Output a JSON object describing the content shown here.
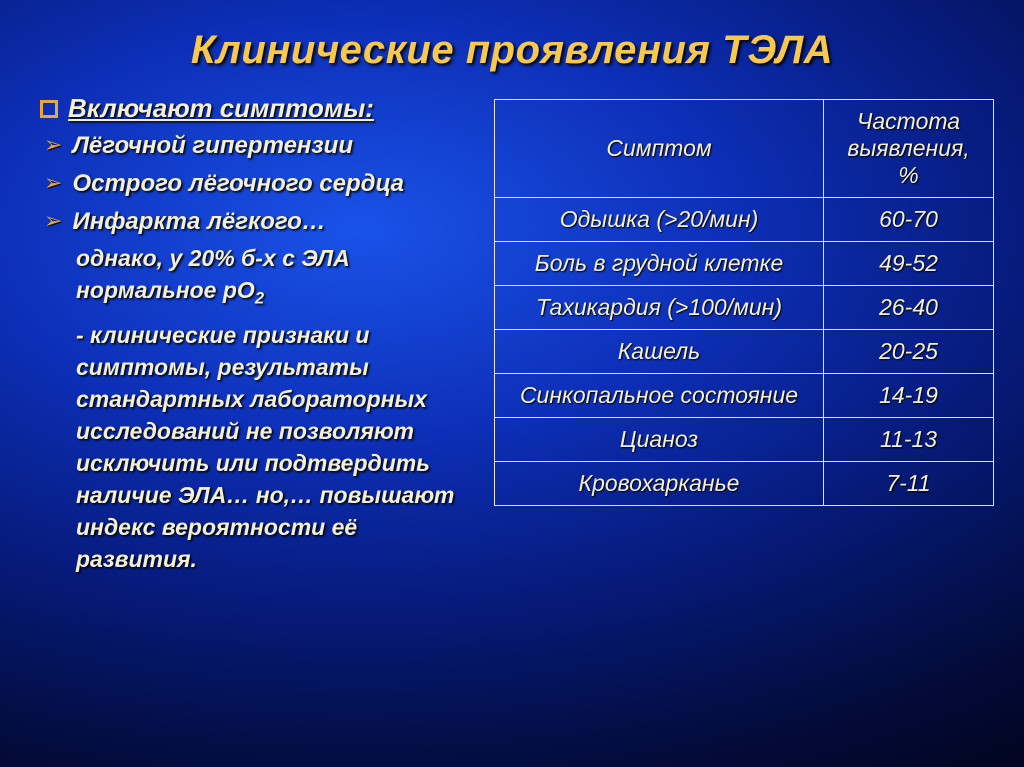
{
  "title": "Клинические проявления ТЭЛА",
  "left": {
    "heading": "Включают симптомы:",
    "bullets": [
      "Лёгочной гипертензии",
      "Острого лёгочного сердца",
      "Инфаркта лёгкого…"
    ],
    "para1_prefix": "однако, у 20% б-х с ЭЛА нормальное pO",
    "para1_sub": "2",
    "para2": "- клинические признаки и симптомы, результаты стандартных лабораторных исследований не позволяют исключить или подтвердить наличие ЭЛА… но,… повышают индекс вероятности её развития."
  },
  "table": {
    "columns": [
      "Симптом",
      "Частота выявления, %"
    ],
    "rows": [
      {
        "symptom": "Одышка (>20/мин)",
        "freq": "60-70"
      },
      {
        "symptom": "Боль в грудной клетке",
        "freq": "49-52"
      },
      {
        "symptom": "Тахикардия (>100/мин)",
        "freq": "26-40"
      },
      {
        "symptom": "Кашель",
        "freq": "20-25"
      },
      {
        "symptom": "Синкопальное состояние",
        "freq": "14-19"
      },
      {
        "symptom": "Цианоз",
        "freq": "11-13"
      },
      {
        "symptom": "Кровохарканье",
        "freq": "7-11"
      }
    ],
    "border_color": "#e9e4c9",
    "text_color": "#f4f0d8"
  },
  "style": {
    "title_color": "#f7c84b",
    "bullet_arrow_color": "#e6a83a",
    "body_text_color": "#f4f0d8",
    "title_fontsize": 40,
    "body_fontsize": 23,
    "table_fontsize": 23
  }
}
